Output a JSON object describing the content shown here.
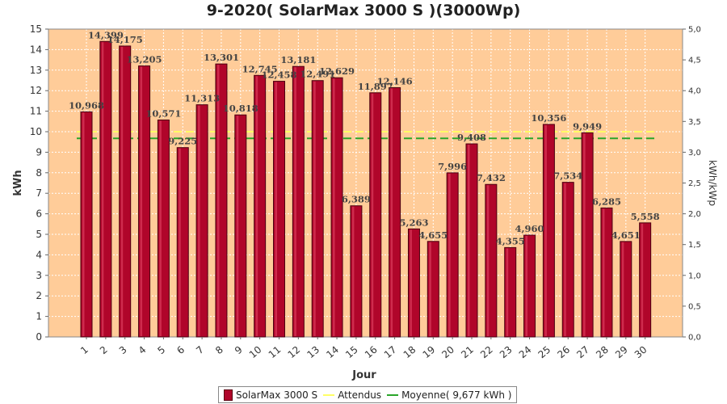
{
  "chart_data": {
    "type": "bar",
    "title": "9-2020( SolarMax 3000 S )(3000Wp)",
    "xlabel": "Jour",
    "ylabel": "kWh",
    "ylabel_right": "kWh/kWp",
    "ylim": [
      0,
      15
    ],
    "ylim_right": [
      0,
      5
    ],
    "y_ticks": [
      "0",
      "1",
      "2",
      "3",
      "4",
      "5",
      "6",
      "7",
      "8",
      "9",
      "10",
      "11",
      "12",
      "13",
      "14",
      "15"
    ],
    "y_ticks_right": [
      "0,0",
      "0,5",
      "1,0",
      "1,5",
      "2,0",
      "2,5",
      "3,0",
      "3,5",
      "4,0",
      "4,5",
      "5,0"
    ],
    "grid": true,
    "legend_position": "bottom",
    "categories": [
      "1",
      "2",
      "3",
      "4",
      "5",
      "6",
      "7",
      "8",
      "9",
      "10",
      "11",
      "12",
      "13",
      "14",
      "15",
      "16",
      "17",
      "18",
      "19",
      "20",
      "21",
      "22",
      "23",
      "24",
      "25",
      "26",
      "27",
      "28",
      "29",
      "30"
    ],
    "series": [
      {
        "name": "SolarMax 3000 S",
        "values": [
          10.968,
          14.399,
          14.175,
          13.205,
          10.571,
          9.225,
          11.313,
          13.301,
          10.818,
          12.745,
          12.458,
          13.181,
          12.491,
          12.629,
          6.389,
          11.897,
          12.146,
          5.263,
          4.655,
          7.996,
          9.408,
          7.432,
          4.355,
          4.96,
          10.356,
          7.534,
          9.949,
          6.285,
          4.651,
          5.558
        ],
        "labels": [
          "10,968",
          "14,399",
          "14,175",
          "13,205",
          "10,571",
          "9,225",
          "11,313",
          "13,301",
          "10,818",
          "12,745",
          "12,458",
          "13,181",
          "12,491",
          "12,629",
          "6,389",
          "11,897",
          "12,146",
          "5,263",
          "4,655",
          "7,996",
          "9,408",
          "7,432",
          "4,355",
          "4,960",
          "10,356",
          "7,534",
          "9,949",
          "6,285",
          "4,651",
          "5,558"
        ],
        "color": "#b0052a"
      }
    ],
    "lines": [
      {
        "name": "Attendus",
        "value": 10.0,
        "color": "#ffff66"
      },
      {
        "name": "Moyenne( 9,677 kWh )",
        "value": 9.677,
        "color": "#2aa52a"
      }
    ],
    "colors": {
      "plot_bg": "#ffcc99",
      "grid": "#ffffff"
    }
  },
  "legend": {
    "bar_label": "SolarMax 3000 S",
    "attendus_label": "Attendus",
    "moyenne_label": "Moyenne( 9,677 kWh )"
  }
}
